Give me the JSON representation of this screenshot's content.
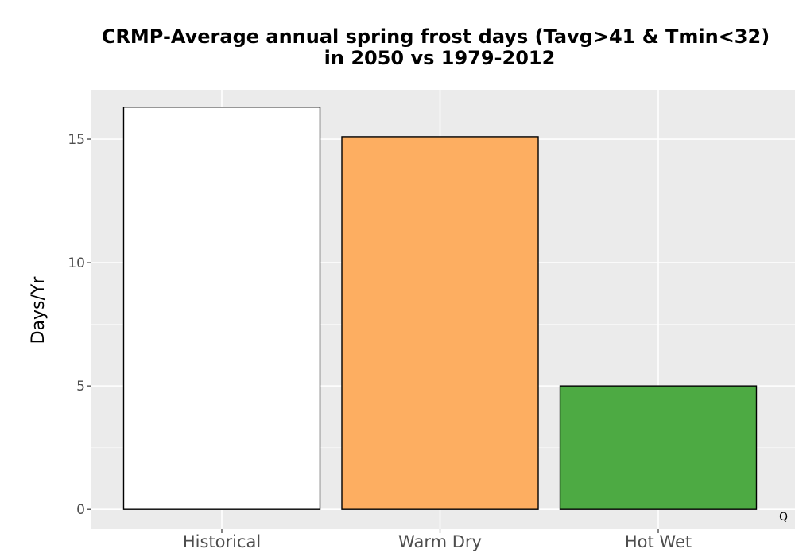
{
  "chart_data": {
    "type": "bar",
    "title_lines": [
      "CRMP-Average annual spring frost days (Tavg>41 & Tmin<32)",
      "in 2050 vs 1979-2012"
    ],
    "xlabel": "",
    "ylabel": "Days/Yr",
    "categories": [
      "Historical",
      "Warm Dry",
      "Hot Wet"
    ],
    "values": [
      16.3,
      15.1,
      5.0
    ],
    "colors": [
      "#ffffff",
      "#fdae61",
      "#4daa43"
    ],
    "ylim": [
      -0.8,
      17.0
    ],
    "yticks": [
      0,
      5,
      10,
      15
    ],
    "ytick_labels": [
      "0",
      "5",
      "10",
      "15"
    ],
    "grid": true,
    "panel_background": "#ebebeb",
    "corner_mark": "Q"
  }
}
